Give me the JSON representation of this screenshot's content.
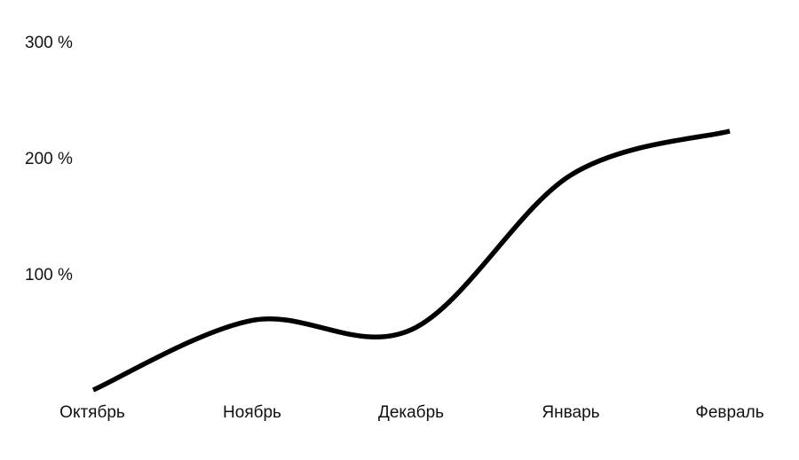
{
  "chart_data": {
    "type": "line",
    "categories": [
      "Октябрь",
      "Ноябрь",
      "Декабрь",
      "Январь",
      "Февраль"
    ],
    "series": [
      {
        "values": [
          0,
          60,
          52,
          185,
          223
        ]
      }
    ],
    "yticks": [
      100,
      200,
      300
    ],
    "ytick_labels": [
      "100 %",
      "200 %",
      "300 %"
    ],
    "ylim": [
      0,
      300
    ],
    "grid": false,
    "line_color": "#000000",
    "text_color": "#111111",
    "background": "#ffffff"
  }
}
